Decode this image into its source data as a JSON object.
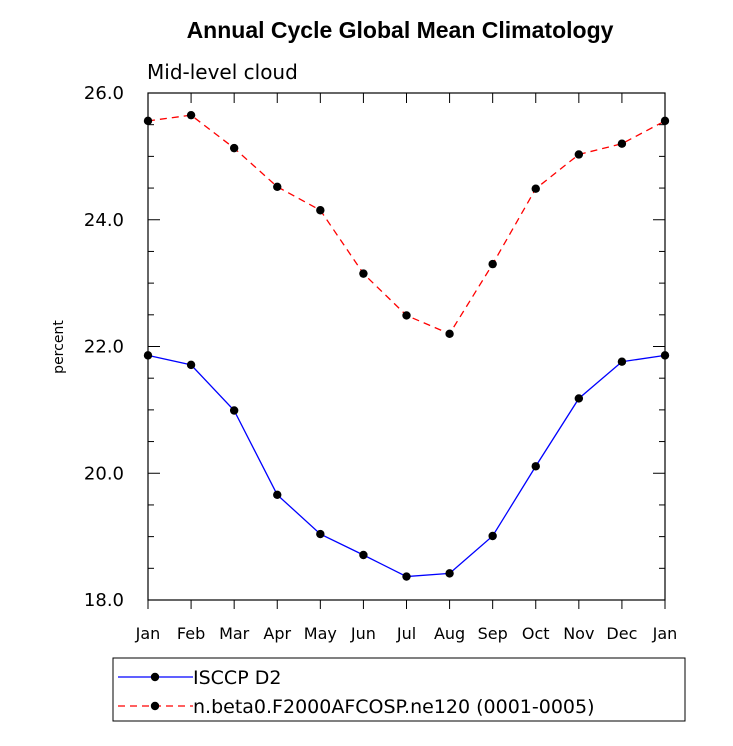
{
  "chart_data": {
    "type": "line",
    "title": "Annual Cycle Global Mean Climatology",
    "subtitle": "Mid-level cloud",
    "xlabel": "",
    "ylabel": "percent",
    "categories": [
      "Jan",
      "Feb",
      "Mar",
      "Apr",
      "May",
      "Jun",
      "Jul",
      "Aug",
      "Sep",
      "Oct",
      "Nov",
      "Dec",
      "Jan"
    ],
    "ylim": [
      18.0,
      26.0
    ],
    "yticks": [
      "18.0",
      "20.0",
      "22.0",
      "24.0",
      "26.0"
    ],
    "grid": false,
    "legend_position": "bottom-left",
    "series": [
      {
        "name": "ISCCP D2",
        "color": "#0000ff",
        "line_style": "solid",
        "marker": "filled-circle",
        "values": [
          21.86,
          21.71,
          20.99,
          19.66,
          19.04,
          18.71,
          18.37,
          18.42,
          19.01,
          20.11,
          21.18,
          21.76,
          21.86
        ]
      },
      {
        "name": "n.beta0.F2000AFCOSP.ne120 (0001-0005)",
        "color": "#ff0000",
        "line_style": "dashed",
        "marker": "filled-circle",
        "values": [
          25.56,
          25.65,
          25.13,
          24.52,
          24.15,
          23.15,
          22.49,
          22.2,
          23.3,
          24.49,
          25.03,
          25.2,
          25.56
        ]
      }
    ]
  }
}
